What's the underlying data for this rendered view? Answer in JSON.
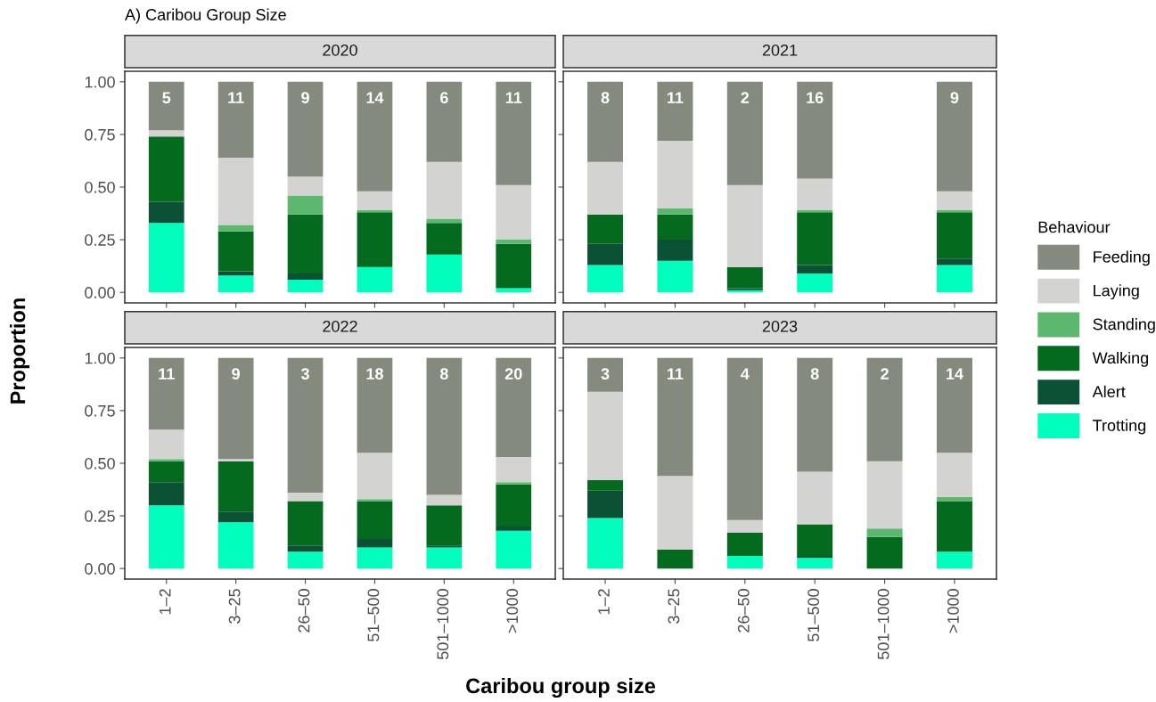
{
  "chart_data": [
    {
      "type": "bar",
      "stacked": true,
      "title": "2020",
      "ylabel": "Proportion",
      "xlabel": "Caribou group size",
      "legend_title": "Behaviour",
      "legend": "right",
      "tick_labels": "y",
      "categories": [
        "1–2",
        "3–25",
        "26–50",
        "51–500",
        "501–1000",
        ">1000"
      ],
      "ylim": [
        -0.05,
        1.05
      ],
      "yticks": [
        {
          "value": 0,
          "label": "0.00"
        },
        {
          "value": 0.25,
          "label": "0.25"
        },
        {
          "value": 0.5,
          "label": "0.50"
        },
        {
          "value": 0.75,
          "label": "0.75"
        },
        {
          "value": 1,
          "label": "1.00"
        }
      ],
      "annotations": [
        "A) Caribou Group Size",
        "5",
        "11",
        "9",
        "14",
        "6",
        "11"
      ],
      "series": [
        {
          "name": "Trotting",
          "color": "#00ffbd",
          "values": [
            0.33,
            0.08,
            0.06,
            0.12,
            0.18,
            0.02
          ]
        },
        {
          "name": "Alert",
          "color": "#0a5135",
          "values": [
            0.1,
            0.02,
            0.03,
            0,
            0,
            0
          ]
        },
        {
          "name": "Walking",
          "color": "#046a1d",
          "values": [
            0.31,
            0.19,
            0.28,
            0.26,
            0.15,
            0.21
          ]
        },
        {
          "name": "Standing",
          "color": "#5cb86e",
          "values": [
            0,
            0.03,
            0.09,
            0.01,
            0.02,
            0.02
          ]
        },
        {
          "name": "Laying",
          "color": "#d3d3d1",
          "values": [
            0.03,
            0.32,
            0.09,
            0.09,
            0.27,
            0.26
          ]
        },
        {
          "name": "Feeding",
          "color": "#858a7e",
          "values": [
            0.23,
            0.36,
            0.45,
            0.52,
            0.38,
            0.49
          ]
        }
      ]
    },
    {
      "type": "bar",
      "stacked": true,
      "title": "2021",
      "tick_labels": false,
      "categories": [
        "1–2",
        "3–25",
        "26–50",
        "51–500",
        "501–1000",
        ">1000"
      ],
      "ylim": [
        -0.05,
        1.05
      ],
      "yticks": [
        {
          "value": 0,
          "label": "0.00"
        },
        {
          "value": 0.25,
          "label": "0.25"
        },
        {
          "value": 0.5,
          "label": "0.50"
        },
        {
          "value": 0.75,
          "label": "0.75"
        },
        {
          "value": 1,
          "label": "1.00"
        }
      ],
      "annotations": [
        "8",
        "11",
        "2",
        "16",
        "9"
      ],
      "series": [
        {
          "name": "Trotting",
          "color": "#00ffbd",
          "values": [
            0.13,
            0.15,
            0.01,
            0.09,
            null,
            0.13
          ]
        },
        {
          "name": "Alert",
          "color": "#0a5135",
          "values": [
            0.1,
            0.1,
            0.01,
            0.04,
            null,
            0.03
          ]
        },
        {
          "name": "Walking",
          "color": "#046a1d",
          "values": [
            0.14,
            0.12,
            0.1,
            0.25,
            null,
            0.22
          ]
        },
        {
          "name": "Standing",
          "color": "#5cb86e",
          "values": [
            0,
            0.03,
            0,
            0.01,
            null,
            0.01
          ]
        },
        {
          "name": "Laying",
          "color": "#d3d3d1",
          "values": [
            0.25,
            0.32,
            0.39,
            0.15,
            null,
            0.09
          ]
        },
        {
          "name": "Feeding",
          "color": "#858a7e",
          "values": [
            0.38,
            0.28,
            0.49,
            0.46,
            null,
            0.52
          ]
        }
      ]
    },
    {
      "type": "bar",
      "stacked": true,
      "title": "2022",
      "categories": [
        "1–2",
        "3–25",
        "26–50",
        "51–500",
        "501–1000",
        ">1000"
      ],
      "ylim": [
        -0.05,
        1.05
      ],
      "yticks": [
        {
          "value": 0,
          "label": "0.00"
        },
        {
          "value": 0.25,
          "label": "0.25"
        },
        {
          "value": 0.5,
          "label": "0.50"
        },
        {
          "value": 0.75,
          "label": "0.75"
        },
        {
          "value": 1,
          "label": "1.00"
        }
      ],
      "annotations": [
        "11",
        "9",
        "3",
        "18",
        "8",
        "20"
      ],
      "series": [
        {
          "name": "Trotting",
          "color": "#00ffbd",
          "values": [
            0.3,
            0.22,
            0.08,
            0.1,
            0.1,
            0.18
          ]
        },
        {
          "name": "Alert",
          "color": "#0a5135",
          "values": [
            0.11,
            0.05,
            0.03,
            0.04,
            0.01,
            0.02
          ]
        },
        {
          "name": "Walking",
          "color": "#046a1d",
          "values": [
            0.1,
            0.24,
            0.21,
            0.18,
            0.19,
            0.2
          ]
        },
        {
          "name": "Standing",
          "color": "#5cb86e",
          "values": [
            0.01,
            0,
            0,
            0.01,
            0,
            0.01
          ]
        },
        {
          "name": "Laying",
          "color": "#d3d3d1",
          "values": [
            0.14,
            0.01,
            0.04,
            0.22,
            0.05,
            0.12
          ]
        },
        {
          "name": "Feeding",
          "color": "#858a7e",
          "values": [
            0.34,
            0.48,
            0.64,
            0.45,
            0.65,
            0.47
          ]
        }
      ]
    },
    {
      "type": "bar",
      "stacked": true,
      "title": "2023",
      "tick_labels": "x",
      "categories": [
        "1–2",
        "3–25",
        "26–50",
        "51–500",
        "501–1000",
        ">1000"
      ],
      "ylim": [
        -0.05,
        1.05
      ],
      "yticks": [
        {
          "value": 0,
          "label": "0.00"
        },
        {
          "value": 0.25,
          "label": "0.25"
        },
        {
          "value": 0.5,
          "label": "0.50"
        },
        {
          "value": 0.75,
          "label": "0.75"
        },
        {
          "value": 1,
          "label": "1.00"
        }
      ],
      "annotations": [
        "3",
        "11",
        "4",
        "8",
        "2",
        "14"
      ],
      "series": [
        {
          "name": "Trotting",
          "color": "#00ffbd",
          "values": [
            0.24,
            0,
            0.06,
            0.05,
            0,
            0.08
          ]
        },
        {
          "name": "Alert",
          "color": "#0a5135",
          "values": [
            0.13,
            0,
            0,
            0.01,
            0,
            0
          ]
        },
        {
          "name": "Walking",
          "color": "#046a1d",
          "values": [
            0.05,
            0.09,
            0.11,
            0.15,
            0.15,
            0.24
          ]
        },
        {
          "name": "Standing",
          "color": "#5cb86e",
          "values": [
            0,
            0,
            0,
            0,
            0.04,
            0.02
          ]
        },
        {
          "name": "Laying",
          "color": "#d3d3d1",
          "values": [
            0.42,
            0.35,
            0.06,
            0.25,
            0.32,
            0.21
          ]
        },
        {
          "name": "Feeding",
          "color": "#858a7e",
          "values": [
            0.16,
            0.56,
            0.77,
            0.54,
            0.49,
            0.45
          ]
        }
      ]
    }
  ]
}
